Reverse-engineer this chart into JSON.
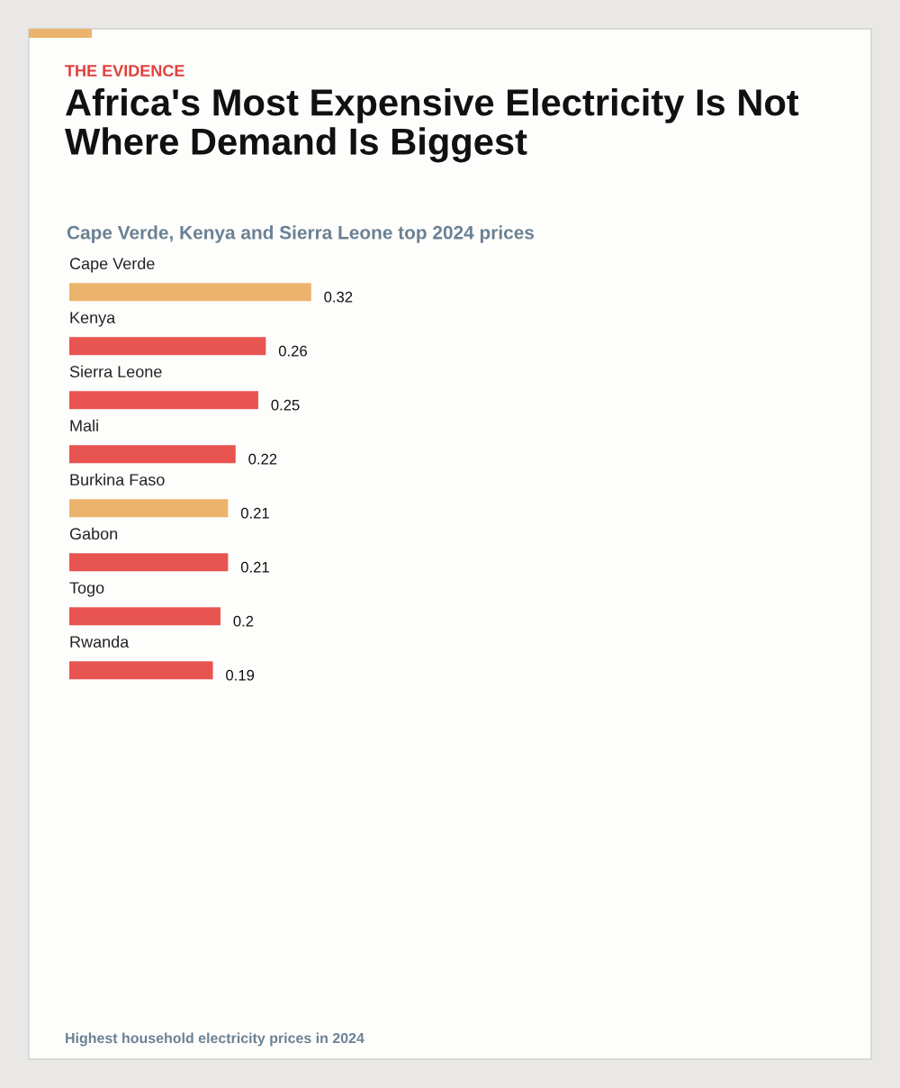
{
  "chart_data": {
    "type": "bar",
    "orientation": "horizontal",
    "data_labels": true,
    "title": "Africa's Most Expensive Electricity Is Not Where Demand Is Biggest",
    "subtitle": "Cape Verde, Kenya and Sierra Leone top 2024 prices",
    "annotations": [
      "THE EVIDENCE",
      "Highest household electricity prices in 2024"
    ],
    "categories": [
      "Cape Verde",
      "Kenya",
      "Sierra Leone",
      "Mali",
      "Burkina Faso",
      "Gabon",
      "Togo",
      "Rwanda"
    ],
    "values": [
      0.32,
      0.26,
      0.25,
      0.22,
      0.21,
      0.21,
      0.2,
      0.19
    ],
    "colors": [
      "#ecb36c",
      "#e85450",
      "#e85450",
      "#e85450",
      "#ecb36c",
      "#e85450",
      "#e85450",
      "#e85450"
    ]
  }
}
